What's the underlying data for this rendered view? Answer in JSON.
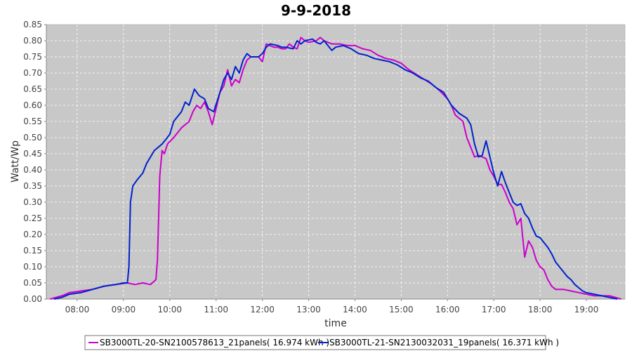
{
  "chart_data": {
    "type": "line",
    "title": "9-9-2018",
    "xlabel": "time",
    "ylabel": "Watt/Wp",
    "xlim": [
      "07:20",
      "19:50"
    ],
    "ylim": [
      0,
      0.85
    ],
    "y_ticks": [
      "0.00",
      "0.05",
      "0.10",
      "0.15",
      "0.20",
      "0.25",
      "0.30",
      "0.35",
      "0.40",
      "0.45",
      "0.50",
      "0.55",
      "0.60",
      "0.65",
      "0.70",
      "0.75",
      "0.80",
      "0.85"
    ],
    "x_ticks": [
      "08:00",
      "09:00",
      "10:00",
      "11:00",
      "12:00",
      "13:00",
      "14:00",
      "15:00",
      "16:00",
      "17:00",
      "18:00",
      "19:00"
    ],
    "grid": true,
    "legend_position": "bottom",
    "background_color": "#c8c8c8",
    "series": [
      {
        "name": "SB3000TL-20-SN2100578613_21panels( 16.974 kWh )",
        "color": "#cc00cc",
        "points": [
          [
            "07:25",
            0.0
          ],
          [
            "07:40",
            0.01
          ],
          [
            "07:50",
            0.02
          ],
          [
            "08:05",
            0.025
          ],
          [
            "08:20",
            0.03
          ],
          [
            "08:35",
            0.04
          ],
          [
            "08:50",
            0.045
          ],
          [
            "09:05",
            0.05
          ],
          [
            "09:15",
            0.045
          ],
          [
            "09:25",
            0.05
          ],
          [
            "09:35",
            0.045
          ],
          [
            "09:42",
            0.06
          ],
          [
            "09:44",
            0.12
          ],
          [
            "09:47",
            0.38
          ],
          [
            "09:50",
            0.46
          ],
          [
            "09:53",
            0.45
          ],
          [
            "09:57",
            0.48
          ],
          [
            "10:05",
            0.5
          ],
          [
            "10:15",
            0.53
          ],
          [
            "10:25",
            0.55
          ],
          [
            "10:30",
            0.58
          ],
          [
            "10:35",
            0.6
          ],
          [
            "10:40",
            0.59
          ],
          [
            "10:45",
            0.61
          ],
          [
            "10:50",
            0.58
          ],
          [
            "10:55",
            0.54
          ],
          [
            "11:00",
            0.59
          ],
          [
            "11:05",
            0.64
          ],
          [
            "11:10",
            0.66
          ],
          [
            "11:15",
            0.71
          ],
          [
            "11:20",
            0.66
          ],
          [
            "11:25",
            0.68
          ],
          [
            "11:30",
            0.67
          ],
          [
            "11:35",
            0.71
          ],
          [
            "11:40",
            0.74
          ],
          [
            "11:45",
            0.75
          ],
          [
            "11:55",
            0.75
          ],
          [
            "12:00",
            0.735
          ],
          [
            "12:05",
            0.79
          ],
          [
            "12:10",
            0.785
          ],
          [
            "12:15",
            0.78
          ],
          [
            "12:20",
            0.78
          ],
          [
            "12:25",
            0.775
          ],
          [
            "12:30",
            0.775
          ],
          [
            "12:35",
            0.79
          ],
          [
            "12:40",
            0.78
          ],
          [
            "12:45",
            0.775
          ],
          [
            "12:50",
            0.81
          ],
          [
            "12:55",
            0.8
          ],
          [
            "13:00",
            0.795
          ],
          [
            "13:10",
            0.8
          ],
          [
            "13:15",
            0.81
          ],
          [
            "13:20",
            0.8
          ],
          [
            "13:30",
            0.79
          ],
          [
            "13:40",
            0.79
          ],
          [
            "13:50",
            0.785
          ],
          [
            "14:00",
            0.785
          ],
          [
            "14:10",
            0.775
          ],
          [
            "14:20",
            0.77
          ],
          [
            "14:30",
            0.755
          ],
          [
            "14:40",
            0.745
          ],
          [
            "14:50",
            0.74
          ],
          [
            "15:00",
            0.73
          ],
          [
            "15:10",
            0.71
          ],
          [
            "15:20",
            0.695
          ],
          [
            "15:30",
            0.68
          ],
          [
            "15:40",
            0.665
          ],
          [
            "15:50",
            0.645
          ],
          [
            "16:00",
            0.62
          ],
          [
            "16:05",
            0.6
          ],
          [
            "16:10",
            0.57
          ],
          [
            "16:20",
            0.55
          ],
          [
            "16:25",
            0.5
          ],
          [
            "16:30",
            0.47
          ],
          [
            "16:35",
            0.44
          ],
          [
            "16:40",
            0.445
          ],
          [
            "16:45",
            0.44
          ],
          [
            "16:50",
            0.435
          ],
          [
            "16:55",
            0.4
          ],
          [
            "17:00",
            0.38
          ],
          [
            "17:05",
            0.355
          ],
          [
            "17:10",
            0.355
          ],
          [
            "17:15",
            0.33
          ],
          [
            "17:20",
            0.3
          ],
          [
            "17:25",
            0.28
          ],
          [
            "17:30",
            0.23
          ],
          [
            "17:35",
            0.25
          ],
          [
            "17:40",
            0.13
          ],
          [
            "17:45",
            0.18
          ],
          [
            "17:50",
            0.16
          ],
          [
            "17:55",
            0.12
          ],
          [
            "18:00",
            0.1
          ],
          [
            "18:05",
            0.09
          ],
          [
            "18:10",
            0.06
          ],
          [
            "18:15",
            0.04
          ],
          [
            "18:20",
            0.03
          ],
          [
            "18:30",
            0.03
          ],
          [
            "18:40",
            0.025
          ],
          [
            "18:50",
            0.02
          ],
          [
            "19:00",
            0.015
          ],
          [
            "19:10",
            0.01
          ],
          [
            "19:30",
            0.01
          ],
          [
            "19:45",
            0.0
          ]
        ]
      },
      {
        "name": "SB3000TL-21-SN2130032031_19panels( 16.371 kWh )",
        "color": "#0022cc",
        "points": [
          [
            "07:30",
            0.0
          ],
          [
            "07:40",
            0.005
          ],
          [
            "07:50",
            0.015
          ],
          [
            "08:05",
            0.02
          ],
          [
            "08:20",
            0.03
          ],
          [
            "08:35",
            0.04
          ],
          [
            "08:50",
            0.045
          ],
          [
            "09:00",
            0.05
          ],
          [
            "09:05",
            0.05
          ],
          [
            "09:07",
            0.1
          ],
          [
            "09:09",
            0.3
          ],
          [
            "09:12",
            0.35
          ],
          [
            "09:18",
            0.37
          ],
          [
            "09:25",
            0.39
          ],
          [
            "09:30",
            0.42
          ],
          [
            "09:40",
            0.46
          ],
          [
            "09:50",
            0.48
          ],
          [
            "10:00",
            0.51
          ],
          [
            "10:05",
            0.55
          ],
          [
            "10:15",
            0.58
          ],
          [
            "10:20",
            0.61
          ],
          [
            "10:25",
            0.6
          ],
          [
            "10:32",
            0.65
          ],
          [
            "10:38",
            0.63
          ],
          [
            "10:45",
            0.62
          ],
          [
            "10:50",
            0.59
          ],
          [
            "10:57",
            0.58
          ],
          [
            "11:05",
            0.64
          ],
          [
            "11:10",
            0.68
          ],
          [
            "11:15",
            0.7
          ],
          [
            "11:20",
            0.68
          ],
          [
            "11:25",
            0.72
          ],
          [
            "11:30",
            0.7
          ],
          [
            "11:35",
            0.74
          ],
          [
            "11:40",
            0.76
          ],
          [
            "11:45",
            0.75
          ],
          [
            "11:55",
            0.75
          ],
          [
            "12:00",
            0.76
          ],
          [
            "12:05",
            0.78
          ],
          [
            "12:10",
            0.79
          ],
          [
            "12:20",
            0.785
          ],
          [
            "12:25",
            0.78
          ],
          [
            "12:30",
            0.78
          ],
          [
            "12:40",
            0.775
          ],
          [
            "12:45",
            0.8
          ],
          [
            "12:50",
            0.79
          ],
          [
            "12:55",
            0.8
          ],
          [
            "13:05",
            0.805
          ],
          [
            "13:10",
            0.795
          ],
          [
            "13:15",
            0.79
          ],
          [
            "13:20",
            0.8
          ],
          [
            "13:25",
            0.785
          ],
          [
            "13:30",
            0.77
          ],
          [
            "13:35",
            0.78
          ],
          [
            "13:45",
            0.785
          ],
          [
            "13:55",
            0.775
          ],
          [
            "14:05",
            0.76
          ],
          [
            "14:15",
            0.755
          ],
          [
            "14:25",
            0.745
          ],
          [
            "14:35",
            0.74
          ],
          [
            "14:45",
            0.735
          ],
          [
            "14:55",
            0.725
          ],
          [
            "15:05",
            0.71
          ],
          [
            "15:15",
            0.7
          ],
          [
            "15:25",
            0.685
          ],
          [
            "15:35",
            0.675
          ],
          [
            "15:45",
            0.655
          ],
          [
            "15:55",
            0.64
          ],
          [
            "16:05",
            0.6
          ],
          [
            "16:15",
            0.575
          ],
          [
            "16:25",
            0.56
          ],
          [
            "16:30",
            0.54
          ],
          [
            "16:35",
            0.48
          ],
          [
            "16:40",
            0.44
          ],
          [
            "16:45",
            0.445
          ],
          [
            "16:50",
            0.49
          ],
          [
            "16:55",
            0.44
          ],
          [
            "17:00",
            0.39
          ],
          [
            "17:05",
            0.35
          ],
          [
            "17:10",
            0.395
          ],
          [
            "17:15",
            0.36
          ],
          [
            "17:20",
            0.33
          ],
          [
            "17:25",
            0.3
          ],
          [
            "17:30",
            0.29
          ],
          [
            "17:35",
            0.295
          ],
          [
            "17:40",
            0.265
          ],
          [
            "17:45",
            0.25
          ],
          [
            "17:50",
            0.22
          ],
          [
            "17:55",
            0.195
          ],
          [
            "18:00",
            0.19
          ],
          [
            "18:05",
            0.175
          ],
          [
            "18:10",
            0.16
          ],
          [
            "18:15",
            0.14
          ],
          [
            "18:20",
            0.115
          ],
          [
            "18:25",
            0.1
          ],
          [
            "18:30",
            0.085
          ],
          [
            "18:35",
            0.07
          ],
          [
            "18:40",
            0.06
          ],
          [
            "18:45",
            0.045
          ],
          [
            "18:50",
            0.035
          ],
          [
            "18:55",
            0.025
          ],
          [
            "19:00",
            0.02
          ],
          [
            "19:10",
            0.015
          ],
          [
            "19:20",
            0.01
          ],
          [
            "19:30",
            0.005
          ],
          [
            "19:40",
            0.0
          ]
        ]
      }
    ]
  }
}
